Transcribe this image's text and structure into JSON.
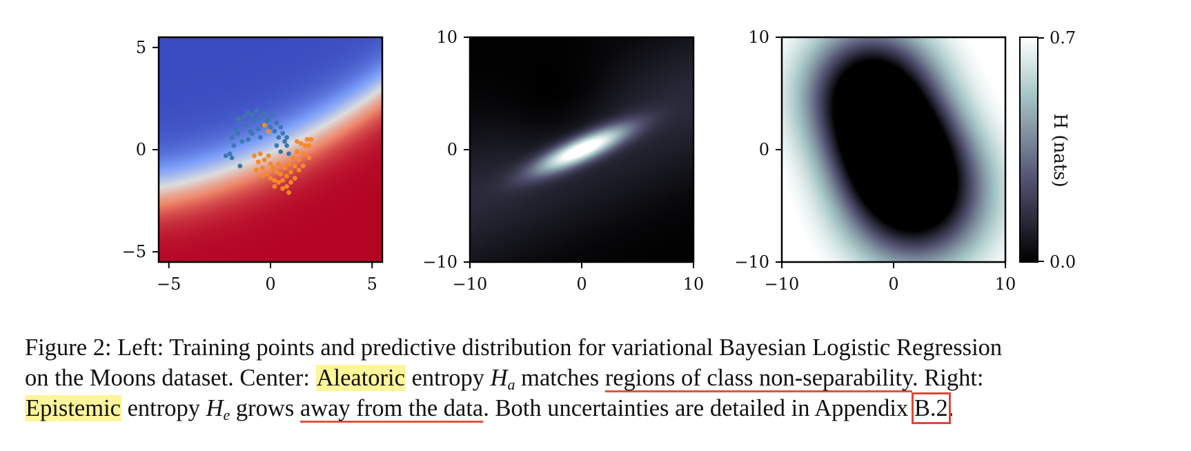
{
  "chart_data": [
    {
      "type": "heatmap",
      "panel": "left",
      "xlim": [
        -5.5,
        5.5
      ],
      "ylim": [
        -5.5,
        5.5
      ],
      "xticks": [
        -5,
        0,
        5
      ],
      "yticks": [
        -5,
        0,
        5
      ],
      "xtick_labels": [
        "−5",
        "0",
        "5"
      ],
      "ytick_labels": [
        "−5",
        "0",
        "5"
      ],
      "colormap": "coolwarm",
      "colors": {
        "blue": "#3a4cc0",
        "red": "#b40426",
        "mid": "#dddddd"
      },
      "series": [
        {
          "color": "#3b78b0",
          "points": [
            [
              -1.5,
              1.4
            ],
            [
              -1.3,
              1.6
            ],
            [
              -1.1,
              1.8
            ],
            [
              -0.9,
              1.7
            ],
            [
              -0.7,
              1.9
            ],
            [
              -0.5,
              1.6
            ],
            [
              -0.3,
              1.8
            ],
            [
              -0.1,
              1.5
            ],
            [
              0.1,
              1.7
            ],
            [
              0.3,
              1.3
            ],
            [
              0.5,
              1.1
            ],
            [
              0.6,
              0.8
            ],
            [
              0.7,
              0.4
            ],
            [
              0.8,
              0.2
            ],
            [
              -1.7,
              1.0
            ],
            [
              -1.9,
              0.6
            ],
            [
              -1.8,
              0.2
            ],
            [
              -2.0,
              -0.2
            ],
            [
              -2.2,
              -0.3
            ],
            [
              -1.6,
              0.8
            ],
            [
              -1.2,
              1.2
            ],
            [
              -0.8,
              1.4
            ],
            [
              -0.4,
              1.2
            ],
            [
              0.0,
              1.1
            ],
            [
              0.4,
              0.6
            ],
            [
              0.9,
              -0.2
            ],
            [
              -1.4,
              0.4
            ],
            [
              -1.0,
              0.9
            ],
            [
              -0.6,
              1.0
            ],
            [
              0.2,
              0.9
            ],
            [
              -1.9,
              -0.4
            ],
            [
              -1.5,
              -0.8
            ],
            [
              0.5,
              -0.1
            ],
            [
              -0.2,
              1.4
            ],
            [
              -1.1,
              0.5
            ],
            [
              0.3,
              0.2
            ],
            [
              -0.9,
              0.8
            ],
            [
              -1.6,
              1.5
            ],
            [
              -0.5,
              0.6
            ],
            [
              0.8,
              0.6
            ]
          ]
        },
        {
          "color": "#f28b28",
          "points": [
            [
              -0.6,
              -0.6
            ],
            [
              -0.4,
              -0.9
            ],
            [
              -0.2,
              -1.2
            ],
            [
              0.0,
              -1.4
            ],
            [
              0.2,
              -1.5
            ],
            [
              0.4,
              -1.6
            ],
            [
              0.6,
              -1.5
            ],
            [
              0.8,
              -1.3
            ],
            [
              1.0,
              -1.1
            ],
            [
              1.2,
              -0.8
            ],
            [
              1.4,
              -0.5
            ],
            [
              1.6,
              -0.2
            ],
            [
              1.7,
              0.2
            ],
            [
              1.8,
              0.5
            ],
            [
              -0.8,
              -0.3
            ],
            [
              -0.5,
              -0.2
            ],
            [
              -0.3,
              -0.5
            ],
            [
              0.1,
              -0.9
            ],
            [
              0.3,
              -1.1
            ],
            [
              0.5,
              -1.2
            ],
            [
              0.7,
              -0.9
            ],
            [
              0.9,
              -0.7
            ],
            [
              1.1,
              -0.4
            ],
            [
              1.3,
              -0.1
            ],
            [
              1.5,
              0.3
            ],
            [
              1.9,
              0.2
            ],
            [
              -0.1,
              -0.3
            ],
            [
              0.6,
              -1.9
            ],
            [
              0.9,
              -2.1
            ],
            [
              1.0,
              -1.6
            ],
            [
              0.2,
              -1.8
            ],
            [
              -0.4,
              -1.3
            ],
            [
              1.6,
              -0.8
            ],
            [
              1.9,
              -0.4
            ],
            [
              0.4,
              -0.7
            ],
            [
              -0.7,
              -1.0
            ],
            [
              1.2,
              -1.4
            ],
            [
              0.0,
              -0.7
            ],
            [
              -0.3,
              1.2
            ],
            [
              -0.1,
              0.9
            ],
            [
              0.8,
              -1.8
            ],
            [
              1.4,
              -1.0
            ],
            [
              2.0,
              0.5
            ],
            [
              1.3,
              0.4
            ]
          ]
        }
      ]
    },
    {
      "type": "heatmap",
      "panel": "center",
      "xlim": [
        -10,
        10
      ],
      "ylim": [
        -10,
        10
      ],
      "xticks": [
        -10,
        0,
        10
      ],
      "yticks": [
        -10,
        0,
        10
      ],
      "xtick_labels": [
        "−10",
        "0",
        "10"
      ],
      "ytick_labels": [
        "−10",
        "0",
        "10"
      ],
      "colormap": "bone",
      "quantity": "aleatoric entropy"
    },
    {
      "type": "heatmap",
      "panel": "right",
      "xlim": [
        -10,
        10
      ],
      "ylim": [
        -10,
        10
      ],
      "xticks": [
        -10,
        0,
        10
      ],
      "yticks": [
        -10,
        0,
        10
      ],
      "xtick_labels": [
        "−10",
        "0",
        "10"
      ],
      "ytick_labels": [
        "−10",
        "0",
        "10"
      ],
      "colormap": "bone",
      "quantity": "epistemic entropy",
      "colorbar": {
        "min": 0.0,
        "max": 0.7,
        "min_label": "0.0",
        "max_label": "0.7",
        "label": "H (nats)"
      }
    }
  ],
  "caption": {
    "line1": "Figure 2: Left: Training points and predictive distribution for variational Bayesian Logistic Regression",
    "line2_a": "on the Moons dataset. Center: ",
    "line2_hl": "Aleatoric",
    "line2_b": " entropy ",
    "line2_math": "H",
    "line2_sub": "a",
    "line2_c": " matches ",
    "line2_ul": "regions of class non-separability",
    "line2_d": ". Right:",
    "line3_hl": "Epistemic",
    "line3_a": " entropy ",
    "line3_math": "H",
    "line3_sub": "e",
    "line3_b": " grows ",
    "line3_ul": "away from the data",
    "line3_c": ". Both uncertainties are detailed in Appendix ",
    "line3_box": "B.2",
    "line3_d": "."
  }
}
